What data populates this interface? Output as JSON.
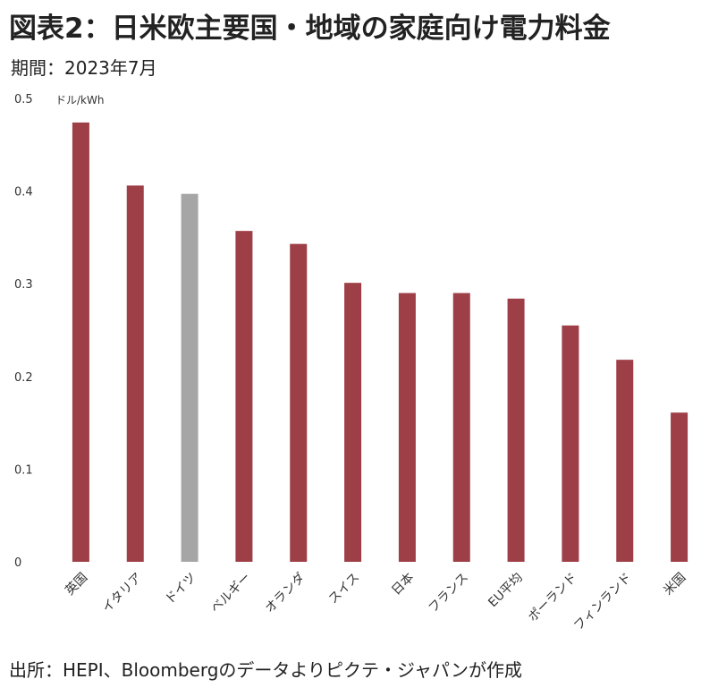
{
  "header": {
    "title": "図表2：日米欧主要国・地域の家庭向け電力料金",
    "period": "期間：2023年7月"
  },
  "footer": {
    "source": "出所：HEPI、Bloombergのデータよりピクテ・ジャパンが作成"
  },
  "chart_data": {
    "type": "bar",
    "title": "図表2：日米欧主要国・地域の家庭向け電力料金",
    "subtitle": "期間：2023年7月",
    "unit_label": "ドル/kWh",
    "ylabel": "",
    "xlabel": "",
    "ylim": [
      0,
      0.5
    ],
    "yticks": [
      "0",
      "0.1",
      "0.2",
      "0.3",
      "0.4",
      "0.5"
    ],
    "grid": false,
    "categories": [
      "英国",
      "イタリア",
      "ドイツ",
      "ベルギー",
      "オランダ",
      "スイス",
      "日本",
      "フランス",
      "EU平均",
      "ポーランド",
      "フィンランド",
      "米国"
    ],
    "values": [
      0.474,
      0.406,
      0.397,
      0.357,
      0.343,
      0.301,
      0.29,
      0.29,
      0.284,
      0.255,
      0.218,
      0.161
    ],
    "colors": [
      "#9e3f47",
      "#9e3f47",
      "#a6a6a6",
      "#9e3f47",
      "#9e3f47",
      "#9e3f47",
      "#9e3f47",
      "#9e3f47",
      "#9e3f47",
      "#9e3f47",
      "#9e3f47",
      "#9e3f47"
    ]
  }
}
